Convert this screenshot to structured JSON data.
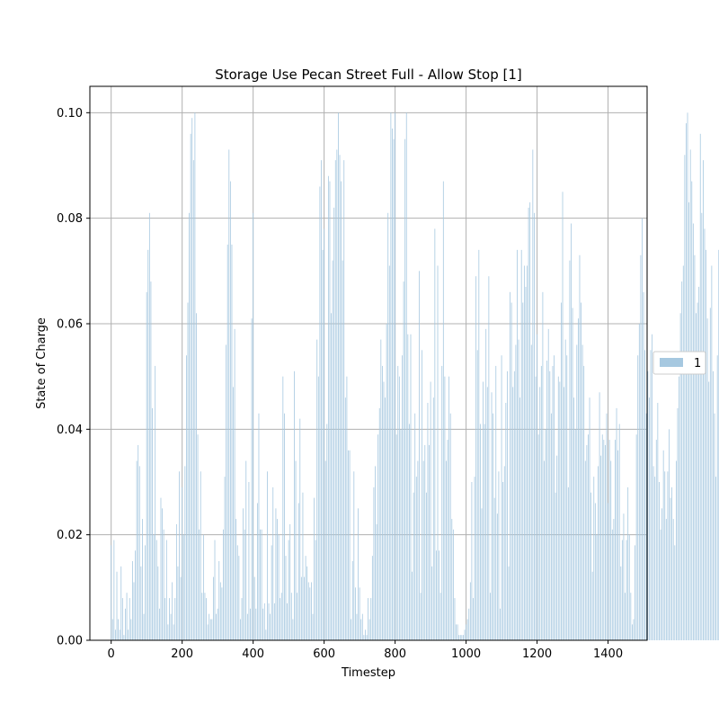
{
  "chart_data": {
    "type": "bar",
    "title": "Storage Use Pecan Street Full - Allow Stop [1]",
    "xlabel": "Timestep",
    "ylabel": "State of Charge",
    "xlim": [
      -60,
      1510
    ],
    "ylim": [
      0,
      0.105
    ],
    "xticks": [
      0,
      200,
      400,
      600,
      800,
      1000,
      1200,
      1400
    ],
    "yticks": [
      0.0,
      0.02,
      0.04,
      0.06,
      0.08,
      0.1
    ],
    "xtick_labels": [
      "0",
      "200",
      "400",
      "600",
      "800",
      "1000",
      "1200",
      "1400"
    ],
    "ytick_labels": [
      "0.00",
      "0.02",
      "0.04",
      "0.06",
      "0.08",
      "0.10"
    ],
    "grid": true,
    "legend_position": "outside-right",
    "series": [
      {
        "name": "1",
        "color": "#a6c8e0",
        "x_start": 0,
        "x_step": 4,
        "values": [
          0.018,
          0.004,
          0.019,
          0.002,
          0.013,
          0.004,
          0.002,
          0.014,
          0.008,
          0.001,
          0.006,
          0.009,
          0.002,
          0.008,
          0.004,
          0.015,
          0.011,
          0.017,
          0.034,
          0.037,
          0.033,
          0.014,
          0.023,
          0.005,
          0.018,
          0.066,
          0.074,
          0.081,
          0.068,
          0.044,
          0.02,
          0.052,
          0.019,
          0.014,
          0.006,
          0.027,
          0.025,
          0.021,
          0.008,
          0.019,
          0.003,
          0.008,
          0.005,
          0.011,
          0.003,
          0.008,
          0.022,
          0.014,
          0.032,
          0.012,
          0.029,
          0.02,
          0.033,
          0.054,
          0.064,
          0.081,
          0.096,
          0.099,
          0.091,
          0.1,
          0.062,
          0.039,
          0.021,
          0.032,
          0.009,
          0.02,
          0.009,
          0.008,
          0.003,
          0.005,
          0.004,
          0.004,
          0.012,
          0.019,
          0.005,
          0.006,
          0.015,
          0.011,
          0.01,
          0.021,
          0.031,
          0.056,
          0.075,
          0.093,
          0.087,
          0.075,
          0.048,
          0.059,
          0.023,
          0.018,
          0.016,
          0.004,
          0.008,
          0.025,
          0.021,
          0.034,
          0.005,
          0.03,
          0.006,
          0.061,
          0.081,
          0.012,
          0.006,
          0.026,
          0.043,
          0.021,
          0.021,
          0.006,
          0.007,
          0.002,
          0.032,
          0.007,
          0.005,
          0.018,
          0.029,
          0.007,
          0.025,
          0.023,
          0.02,
          0.008,
          0.009,
          0.05,
          0.043,
          0.016,
          0.007,
          0.019,
          0.022,
          0.009,
          0.004,
          0.051,
          0.034,
          0.009,
          0.026,
          0.042,
          0.012,
          0.028,
          0.012,
          0.016,
          0.014,
          0.011,
          0.01,
          0.011,
          0.005,
          0.027,
          0.019,
          0.057,
          0.05,
          0.086,
          0.091,
          0.074,
          0.078,
          0.034,
          0.041,
          0.088,
          0.087,
          0.062,
          0.072,
          0.082,
          0.091,
          0.093,
          0.1,
          0.092,
          0.087,
          0.072,
          0.091,
          0.046,
          0.05,
          0.036,
          0.036,
          0.004,
          0.015,
          0.032,
          0.01,
          0.005,
          0.025,
          0.01,
          0.004,
          0.005,
          0.001,
          0.002,
          0.001,
          0.008,
          0.004,
          0.008,
          0.016,
          0.029,
          0.033,
          0.022,
          0.039,
          0.044,
          0.057,
          0.052,
          0.049,
          0.046,
          0.06,
          0.081,
          0.071,
          0.1,
          0.097,
          0.095,
          0.1,
          0.039,
          0.052,
          0.05,
          0.04,
          0.054,
          0.068,
          0.095,
          0.1,
          0.058,
          0.041,
          0.058,
          0.013,
          0.028,
          0.043,
          0.031,
          0.034,
          0.07,
          0.009,
          0.055,
          0.034,
          0.037,
          0.028,
          0.045,
          0.037,
          0.049,
          0.014,
          0.046,
          0.078,
          0.017,
          0.071,
          0.017,
          0.009,
          0.052,
          0.087,
          0.05,
          0.034,
          0.038,
          0.05,
          0.043,
          0.023,
          0.021,
          0.008,
          0.003,
          0.003,
          0.001,
          0.001,
          0.001,
          0.001,
          0.002,
          0.003,
          0.004,
          0.006,
          0.011,
          0.03,
          0.008,
          0.031,
          0.069,
          0.055,
          0.074,
          0.041,
          0.025,
          0.049,
          0.041,
          0.059,
          0.048,
          0.069,
          0.009,
          0.047,
          0.043,
          0.027,
          0.052,
          0.024,
          0.032,
          0.006,
          0.054,
          0.03,
          0.033,
          0.045,
          0.051,
          0.014,
          0.066,
          0.064,
          0.048,
          0.051,
          0.056,
          0.074,
          0.057,
          0.046,
          0.074,
          0.064,
          0.071,
          0.067,
          0.071,
          0.082,
          0.083,
          0.056,
          0.093,
          0.081,
          0.05,
          0.058,
          0.039,
          0.048,
          0.052,
          0.066,
          0.034,
          0.04,
          0.053,
          0.059,
          0.051,
          0.043,
          0.052,
          0.054,
          0.028,
          0.035,
          0.05,
          0.049,
          0.064,
          0.085,
          0.048,
          0.057,
          0.054,
          0.029,
          0.072,
          0.079,
          0.063,
          0.046,
          0.04,
          0.056,
          0.061,
          0.073,
          0.064,
          0.056,
          0.052,
          0.034,
          0.037,
          0.039,
          0.046,
          0.028,
          0.013,
          0.031,
          0.026,
          0.02,
          0.033,
          0.047,
          0.035,
          0.039,
          0.038,
          0.037,
          0.043,
          0.026,
          0.038,
          0.034,
          0.021,
          0.023,
          0.038,
          0.044,
          0.036,
          0.041,
          0.014,
          0.019,
          0.024,
          0.009,
          0.019,
          0.029,
          0.02,
          0.009,
          0.003,
          0.004,
          0.018,
          0.039,
          0.054,
          0.06,
          0.073,
          0.08,
          0.066,
          0.055,
          0.043,
          0.051,
          0.046,
          0.055,
          0.058,
          0.033,
          0.031,
          0.038,
          0.045,
          0.03,
          0.021,
          0.025,
          0.036,
          0.032,
          0.023,
          0.032,
          0.04,
          0.027,
          0.029,
          0.023,
          0.018,
          0.034,
          0.044,
          0.05,
          0.062,
          0.068,
          0.071,
          0.092,
          0.098,
          0.1,
          0.083,
          0.093,
          0.087,
          0.079,
          0.073,
          0.062,
          0.064,
          0.067,
          0.096,
          0.081,
          0.091,
          0.078,
          0.074,
          0.061,
          0.049,
          0.063,
          0.071,
          0.051,
          0.043,
          0.031,
          0.054,
          0.074,
          0.081,
          0.06,
          0.061,
          0.057,
          0.074,
          0.1,
          0.089,
          0.072,
          0.096,
          0.1,
          0.088,
          0.094,
          0.096,
          0.082,
          0.078,
          0.087,
          0.1,
          0.093,
          0.097,
          0.088,
          0.083,
          0.082,
          0.1,
          0.094,
          0.1,
          0.072,
          0.089,
          0.082,
          0.073,
          0.074,
          0.086,
          0.069,
          0.055,
          0.06,
          0.064,
          0.059,
          0.043,
          0.054,
          0.061,
          0.049,
          0.043,
          0.038,
          0.027,
          0.026,
          0.012,
          0.008,
          0.01,
          0.004,
          0.003,
          0.002,
          0.002,
          0.001,
          0.001,
          0.006,
          0.001,
          0.009,
          0.005,
          0.008,
          0.019,
          0.029,
          0.05,
          0.068,
          0.057,
          0.058,
          0.064,
          0.076,
          0.059,
          0.077,
          0.089,
          0.1,
          0.093,
          0.098,
          0.083,
          0.08,
          0.073,
          0.066,
          0.064,
          0.071,
          0.078,
          0.054,
          0.038,
          0.026,
          0.034,
          0.033,
          0.031,
          0.038,
          0.031,
          0.038,
          0.052,
          0.073,
          0.079,
          0.081,
          0.075,
          0.097,
          0.1,
          0.086,
          0.08,
          0.063,
          0.067,
          0.058,
          0.048,
          0.038,
          0.032,
          0.023,
          0.011,
          0.013,
          0.032,
          0.036,
          0.028,
          0.012,
          0.006,
          0.005,
          0.003,
          0.002,
          0.003,
          0.002,
          0.002,
          0.005,
          0.004,
          0.004,
          0.009,
          0.012,
          0.017,
          0.022,
          0.021,
          0.016,
          0.013,
          0.008,
          0.009,
          0.011,
          0.013,
          0.022,
          0.038,
          0.048,
          0.071,
          0.08,
          0.087,
          0.078,
          0.067,
          0.064,
          0.061,
          0.059,
          0.054,
          0.048,
          0.048,
          0.044,
          0.04,
          0.026,
          0.022,
          0.018,
          0.013,
          0.008,
          0.005,
          0.003,
          0.011,
          0.021,
          0.033,
          0.029,
          0.027,
          0.03,
          0.034,
          0.026,
          0.024,
          0.023,
          0.019,
          0.016,
          0.013,
          0.009,
          0.006,
          0.004,
          0.003,
          0.002,
          0.002,
          0.001,
          0.002,
          0.005,
          0.008,
          0.011,
          0.02,
          0.041,
          0.04,
          0.037,
          0.032,
          0.028,
          0.025,
          0.024,
          0.021,
          0.018,
          0.013,
          0.009,
          0.008,
          0.007,
          0.005,
          0.004,
          0.003,
          0.005,
          0.011,
          0.02,
          0.032,
          0.047,
          0.055,
          0.063,
          0.071,
          0.07,
          0.067,
          0.078,
          0.084,
          0.091,
          0.096,
          0.095,
          0.085,
          0.068,
          0.062,
          0.056,
          0.049,
          0.044,
          0.033,
          0.021,
          0.012,
          0.007,
          0.005,
          0.006,
          0.004,
          0.005,
          0.003,
          0.007,
          0.009,
          0.011,
          0.008,
          0.006,
          0.005,
          0.01,
          0.04,
          0.057
        ]
      }
    ]
  }
}
